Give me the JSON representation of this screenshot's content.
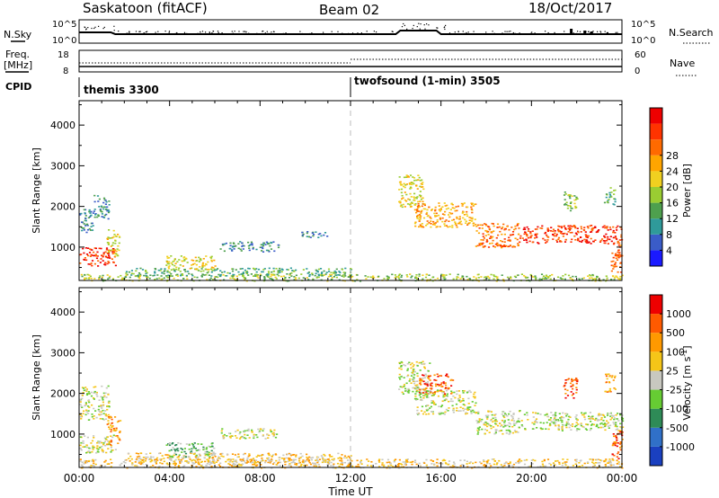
{
  "header": {
    "station": "Saskatoon (fitACF)",
    "beam": "Beam 02",
    "date": "18/Oct/2017"
  },
  "top_panels": {
    "nsky_label": "N.Sky",
    "nsearch_label": "N.Search",
    "freq_label_1": "Freq.",
    "freq_label_2": "[MHz]",
    "nave_label": "Nave",
    "cpid_label": "CPID",
    "nsky_ticks": [
      "10^5",
      "10^0"
    ],
    "nsearch_ticks": [
      "10^5",
      "10^0"
    ],
    "freq_ticks": [
      "18",
      "8"
    ],
    "nave_ticks": [
      "60",
      "0"
    ],
    "cpid_segments": [
      {
        "start_hour": 0,
        "label": "themis 3300"
      },
      {
        "start_hour": 12,
        "label": "twofsound (1-min) 3505"
      }
    ]
  },
  "chart_data": [
    {
      "type": "heatmap",
      "parameter": "Power",
      "ylabel": "Slant Range [km]",
      "ylim": [
        180,
        4600
      ],
      "yticks": [
        1000,
        2000,
        3000,
        4000
      ],
      "xlim": [
        0,
        24
      ],
      "colorbar": {
        "label": "Power [dB]",
        "ticks": [
          "4",
          "8",
          "12",
          "16",
          "20",
          "24",
          "28"
        ],
        "colors": [
          "#1a1aff",
          "#3a5cc8",
          "#2f9a9a",
          "#4ea04e",
          "#9acd32",
          "#f0d020",
          "#ffa500",
          "#ff6a00",
          "#ff3300",
          "#ee0000"
        ]
      },
      "scatter_regions": [
        {
          "t0": 0.0,
          "t1": 0.6,
          "r0": 1350,
          "r1": 2000,
          "level": 2
        },
        {
          "t0": 0.6,
          "t1": 1.3,
          "r0": 1700,
          "r1": 2300,
          "level": 2
        },
        {
          "t0": 0.0,
          "t1": 1.6,
          "r0": 550,
          "r1": 1000,
          "level": 8
        },
        {
          "t0": 1.2,
          "t1": 1.8,
          "r0": 750,
          "r1": 1450,
          "level": 5
        },
        {
          "t0": 0.0,
          "t1": 24.0,
          "r0": 180,
          "r1": 350,
          "level": 4
        },
        {
          "t0": 2.0,
          "t1": 12.0,
          "r0": 300,
          "r1": 500,
          "level": 3
        },
        {
          "t0": 3.8,
          "t1": 6.0,
          "r0": 450,
          "r1": 800,
          "level": 5
        },
        {
          "t0": 6.2,
          "t1": 8.8,
          "r0": 900,
          "r1": 1150,
          "level": 2
        },
        {
          "t0": 9.8,
          "t1": 11.0,
          "r0": 1250,
          "r1": 1400,
          "level": 2
        },
        {
          "t0": 14.1,
          "t1": 15.2,
          "r0": 2000,
          "r1": 2800,
          "level": 5
        },
        {
          "t0": 14.8,
          "t1": 17.5,
          "r0": 1500,
          "r1": 2100,
          "level": 6
        },
        {
          "t0": 17.5,
          "t1": 19.5,
          "r0": 1000,
          "r1": 1600,
          "level": 7
        },
        {
          "t0": 19.5,
          "t1": 24.0,
          "r0": 1100,
          "r1": 1550,
          "level": 8
        },
        {
          "t0": 21.4,
          "t1": 22.0,
          "r0": 1900,
          "r1": 2400,
          "level": 4
        },
        {
          "t0": 23.2,
          "t1": 23.7,
          "r0": 2050,
          "r1": 2500,
          "level": 3
        },
        {
          "t0": 23.5,
          "t1": 24.0,
          "r0": 400,
          "r1": 1100,
          "level": 7
        }
      ]
    },
    {
      "type": "heatmap",
      "parameter": "Velocity",
      "ylabel": "Slant Range [km]",
      "xlabel": "Time UT",
      "ylim": [
        180,
        4600
      ],
      "yticks": [
        1000,
        2000,
        3000,
        4000
      ],
      "xlim": [
        0,
        24
      ],
      "xticks": [
        "00:00",
        "04:00",
        "08:00",
        "12:00",
        "16:00",
        "20:00",
        "00:00"
      ],
      "colorbar": {
        "label": "Velocity [m s",
        "label_sup": "-1",
        "label_end": "]",
        "ticks": [
          "1000",
          "500",
          "100",
          "25",
          "-25",
          "-100",
          "-500",
          "-1000"
        ],
        "colors": [
          "#1a40c0",
          "#3070c8",
          "#2e8b57",
          "#66cc33",
          "#c8c8c0",
          "#f5c518",
          "#ff9900",
          "#ff5a00",
          "#ee0000"
        ]
      },
      "scatter_regions": [
        {
          "t0": 0.0,
          "t1": 1.3,
          "r0": 1350,
          "r1": 2200,
          "level": 4
        },
        {
          "t0": 0.0,
          "t1": 1.6,
          "r0": 550,
          "r1": 1000,
          "level": 4
        },
        {
          "t0": 1.2,
          "t1": 1.8,
          "r0": 750,
          "r1": 1450,
          "level": 6
        },
        {
          "t0": 0.0,
          "t1": 24.0,
          "r0": 180,
          "r1": 400,
          "level": 5
        },
        {
          "t0": 2.0,
          "t1": 12.0,
          "r0": 300,
          "r1": 550,
          "level": 5
        },
        {
          "t0": 3.8,
          "t1": 6.0,
          "r0": 450,
          "r1": 800,
          "level": 3
        },
        {
          "t0": 6.2,
          "t1": 8.8,
          "r0": 900,
          "r1": 1150,
          "level": 4
        },
        {
          "t0": 14.1,
          "t1": 15.5,
          "r0": 2000,
          "r1": 2800,
          "level": 4
        },
        {
          "t0": 15.0,
          "t1": 16.5,
          "r0": 2000,
          "r1": 2500,
          "level": 7
        },
        {
          "t0": 14.8,
          "t1": 17.5,
          "r0": 1500,
          "r1": 2100,
          "level": 4
        },
        {
          "t0": 17.5,
          "t1": 19.5,
          "r0": 1000,
          "r1": 1600,
          "level": 4
        },
        {
          "t0": 19.5,
          "t1": 24.0,
          "r0": 1100,
          "r1": 1550,
          "level": 4
        },
        {
          "t0": 21.4,
          "t1": 22.0,
          "r0": 1900,
          "r1": 2400,
          "level": 7
        },
        {
          "t0": 23.2,
          "t1": 23.7,
          "r0": 2050,
          "r1": 2500,
          "level": 6
        },
        {
          "t0": 23.5,
          "t1": 24.0,
          "r0": 400,
          "r1": 1100,
          "level": 7
        }
      ]
    }
  ]
}
